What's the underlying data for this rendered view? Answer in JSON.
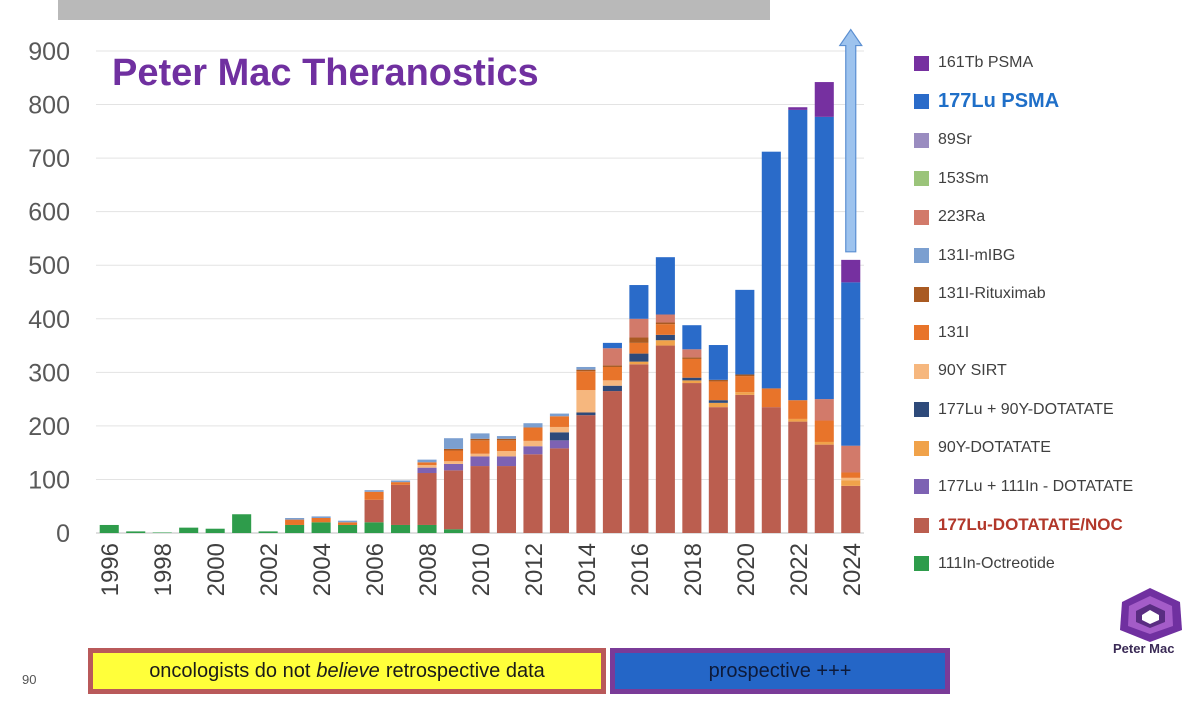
{
  "slide_number": "90",
  "logo": {
    "name": "Peter Mac",
    "colors": [
      "#7030a0",
      "#5a2d82",
      "#a45cc8"
    ]
  },
  "callouts": {
    "retro_prefix": "oncologists do not",
    "retro_emph": "believe",
    "retro_suffix": "retrospective data",
    "prospective": "prospective +++"
  },
  "chart_data": {
    "type": "bar",
    "stacked": true,
    "title": "Peter Mac Theranostics",
    "xlabel": "",
    "ylabel": "",
    "ylim": [
      0,
      900
    ],
    "yticks": [
      0,
      100,
      200,
      300,
      400,
      500,
      600,
      700,
      800,
      900
    ],
    "grid": true,
    "legend_position": "right",
    "categories": [
      "1996",
      "1997",
      "1998",
      "1999",
      "2000",
      "2001",
      "2002",
      "2003",
      "2004",
      "2005",
      "2006",
      "2007",
      "2008",
      "2009",
      "2010",
      "2011",
      "2012",
      "2013",
      "2014",
      "2015",
      "2016",
      "2017",
      "2018",
      "2019",
      "2020",
      "2021",
      "2022",
      "2023",
      "2024"
    ],
    "xtick_labels": [
      "1996",
      "",
      "1998",
      "",
      "2000",
      "",
      "2002",
      "",
      "2004",
      "",
      "2006",
      "",
      "2008",
      "",
      "2010",
      "",
      "2012",
      "",
      "2014",
      "",
      "2016",
      "",
      "2018",
      "",
      "2020",
      "",
      "2022",
      "",
      "2024"
    ],
    "arrow": {
      "category": "2024",
      "from": 525,
      "to": 940,
      "color": "#9dc3ee"
    },
    "series": [
      {
        "name": "111In-Octreotide",
        "color": "#2e9c4b",
        "values": [
          15,
          3,
          1,
          10,
          8,
          35,
          3,
          15,
          20,
          15,
          20,
          15,
          15,
          7,
          0,
          0,
          0,
          0,
          0,
          0,
          0,
          0,
          0,
          0,
          0,
          0,
          0,
          0,
          0
        ]
      },
      {
        "name": "177Lu-DOTATATE/NOC",
        "color": "#bb5e4f",
        "values": [
          0,
          0,
          0,
          0,
          0,
          0,
          0,
          0,
          0,
          0,
          42,
          75,
          97,
          110,
          125,
          125,
          147,
          158,
          220,
          265,
          315,
          350,
          280,
          235,
          258,
          235,
          208,
          165,
          88
        ]
      },
      {
        "name": "177Lu + 111In - DOTATATE",
        "color": "#7d62b3",
        "values": [
          0,
          0,
          0,
          0,
          0,
          0,
          0,
          0,
          0,
          0,
          0,
          0,
          10,
          12,
          18,
          18,
          15,
          15,
          0,
          0,
          0,
          0,
          0,
          0,
          0,
          0,
          0,
          0,
          0
        ]
      },
      {
        "name": "90Y-DOTATATE",
        "color": "#f0a24a",
        "values": [
          0,
          0,
          0,
          0,
          0,
          0,
          0,
          0,
          0,
          0,
          0,
          0,
          0,
          0,
          0,
          0,
          0,
          0,
          0,
          0,
          5,
          10,
          5,
          8,
          5,
          0,
          5,
          5,
          10
        ]
      },
      {
        "name": "177Lu + 90Y-DOTATATE",
        "color": "#2e4a7a",
        "values": [
          0,
          0,
          0,
          0,
          0,
          0,
          0,
          0,
          0,
          0,
          0,
          0,
          0,
          0,
          0,
          0,
          0,
          15,
          5,
          10,
          15,
          10,
          5,
          5,
          0,
          0,
          0,
          0,
          0
        ]
      },
      {
        "name": "90Y SIRT",
        "color": "#f6b77e",
        "values": [
          0,
          0,
          0,
          0,
          0,
          0,
          0,
          0,
          0,
          0,
          0,
          0,
          5,
          5,
          5,
          10,
          10,
          10,
          42,
          10,
          0,
          0,
          0,
          0,
          0,
          0,
          0,
          0,
          5
        ]
      },
      {
        "name": "131I",
        "color": "#e8742a",
        "values": [
          0,
          0,
          0,
          0,
          0,
          0,
          0,
          10,
          8,
          5,
          15,
          5,
          5,
          20,
          25,
          20,
          25,
          20,
          35,
          25,
          20,
          20,
          35,
          35,
          30,
          35,
          35,
          40,
          10
        ]
      },
      {
        "name": "131I-Rituximab",
        "color": "#a95a22",
        "values": [
          0,
          0,
          0,
          0,
          0,
          0,
          0,
          0,
          0,
          0,
          0,
          0,
          0,
          3,
          3,
          3,
          0,
          0,
          3,
          3,
          10,
          3,
          3,
          3,
          3,
          0,
          0,
          0,
          0
        ]
      },
      {
        "name": "131I-mIBG",
        "color": "#7b9fd0",
        "values": [
          0,
          0,
          0,
          0,
          0,
          0,
          0,
          3,
          3,
          3,
          3,
          3,
          5,
          20,
          10,
          5,
          8,
          5,
          5,
          0,
          0,
          0,
          0,
          0,
          0,
          0,
          0,
          0,
          0
        ]
      },
      {
        "name": "223Ra",
        "color": "#d27a6a",
        "values": [
          0,
          0,
          0,
          0,
          0,
          0,
          0,
          0,
          0,
          0,
          0,
          0,
          0,
          0,
          0,
          0,
          0,
          0,
          0,
          32,
          35,
          15,
          15,
          0,
          0,
          0,
          0,
          40,
          50
        ]
      },
      {
        "name": "153Sm",
        "color": "#9bc47a",
        "values": [
          0,
          0,
          0,
          0,
          0,
          0,
          0,
          0,
          0,
          0,
          0,
          0,
          0,
          0,
          0,
          0,
          0,
          0,
          0,
          0,
          0,
          0,
          0,
          0,
          0,
          0,
          0,
          0,
          0
        ]
      },
      {
        "name": "89Sr",
        "color": "#9a8cc0",
        "values": [
          0,
          0,
          0,
          0,
          0,
          0,
          0,
          0,
          0,
          0,
          0,
          0,
          0,
          0,
          0,
          0,
          0,
          0,
          0,
          0,
          0,
          0,
          0,
          0,
          0,
          0,
          0,
          0,
          0
        ]
      },
      {
        "name": "177Lu PSMA",
        "color": "#2a6bc9",
        "values": [
          0,
          0,
          0,
          0,
          0,
          0,
          0,
          0,
          0,
          0,
          0,
          0,
          0,
          0,
          0,
          0,
          0,
          0,
          0,
          10,
          63,
          107,
          45,
          65,
          158,
          442,
          542,
          527,
          305
        ]
      },
      {
        "name": "161Tb PSMA",
        "color": "#7630a0",
        "values": [
          0,
          0,
          0,
          0,
          0,
          0,
          0,
          0,
          0,
          0,
          0,
          0,
          0,
          0,
          0,
          0,
          0,
          0,
          0,
          0,
          0,
          0,
          0,
          0,
          0,
          0,
          5,
          65,
          42
        ]
      }
    ],
    "legend_order": [
      "161Tb PSMA",
      "177Lu PSMA",
      "89Sr",
      "153Sm",
      "223Ra",
      "131I-mIBG",
      "131I-Rituximab",
      "131I",
      "90Y SIRT",
      "177Lu + 90Y-DOTATATE",
      "90Y-DOTATATE",
      "177Lu + 111In - DOTATATE",
      "177Lu-DOTATATE/NOC",
      "111In-Octreotide"
    ],
    "legend_highlight": {
      "177Lu PSMA": "blue",
      "177Lu-DOTATATE/NOC": "red"
    }
  }
}
